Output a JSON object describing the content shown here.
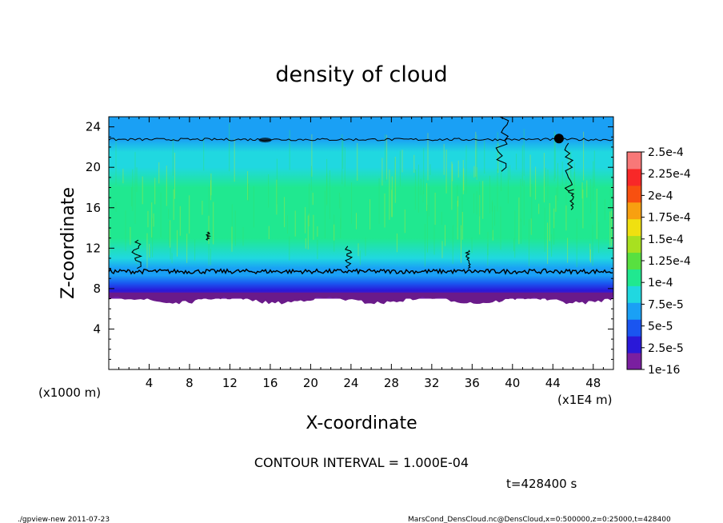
{
  "chart_data": {
    "type": "heatmap",
    "title": "density of cloud",
    "xlabel": "X-coordinate",
    "ylabel": "Z-coordinate",
    "x_unit_note": "(x1E4 m)",
    "y_unit_note": "(x1000 m)",
    "xlim": [
      0,
      50
    ],
    "ylim": [
      0,
      25
    ],
    "x_ticks": [
      "4",
      "8",
      "12",
      "16",
      "20",
      "24",
      "28",
      "32",
      "36",
      "40",
      "44",
      "48"
    ],
    "y_ticks": [
      "4",
      "8",
      "12",
      "16",
      "20",
      "24"
    ],
    "colorbar": {
      "labels": [
        "1e-16",
        "2.5e-5",
        "5e-5",
        "7.5e-5",
        "1e-4",
        "1.25e-4",
        "1.5e-4",
        "1.75e-4",
        "2e-4",
        "2.25e-4",
        "2.5e-4"
      ],
      "colors": [
        "#7a1fa0",
        "#2a18d8",
        "#1a55f0",
        "#1aa0f5",
        "#20d8e0",
        "#20e890",
        "#58e040",
        "#a8e020",
        "#f0e010",
        "#f8a010",
        "#f85010",
        "#f82828",
        "#f87878"
      ]
    },
    "profile_z": [
      7,
      7.8,
      8.5,
      9.3,
      10,
      11,
      13,
      16,
      18,
      20,
      21.5,
      22.8,
      25
    ],
    "profile_value_e5": [
      1.0,
      2.5,
      5.0,
      7.5,
      9.8,
      12.3,
      13.2,
      13.3,
      13.0,
      12.2,
      11.0,
      9.8,
      9.0
    ],
    "contour_interval_label": "CONTOUR INTERVAL = 1.000E-04",
    "time_label": "t=428400 s"
  },
  "footer": {
    "left": "./gpview-new  2011-07-23",
    "right": "MarsCond_DensCloud.nc@DensCloud,x=0:500000,z=0:25000,t=428400"
  }
}
